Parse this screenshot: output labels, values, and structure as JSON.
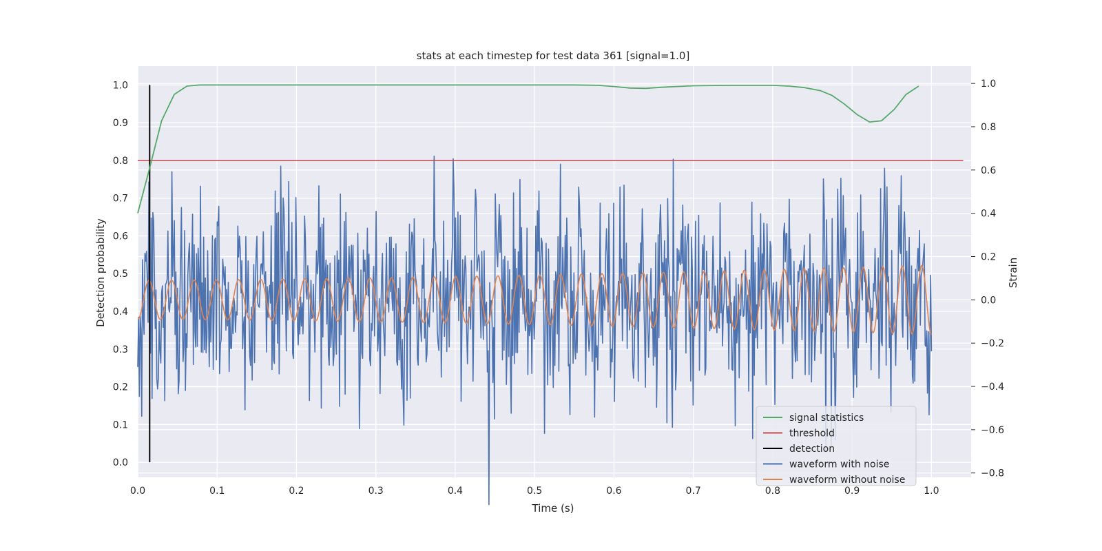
{
  "chart_data": {
    "type": "line",
    "title": "stats at each timestep for test data 361 [signal=1.0]",
    "xlabel": "Time (s)",
    "ylabel_left": "Detection probability",
    "ylabel_right": "Strain",
    "xlim": [
      0.0,
      1.05
    ],
    "ylim_left": [
      -0.04,
      1.05
    ],
    "ylim_right": [
      -0.82,
      1.08
    ],
    "x_ticks": [
      "0.0",
      "0.1",
      "0.2",
      "0.3",
      "0.4",
      "0.5",
      "0.6",
      "0.7",
      "0.8",
      "0.9",
      "1.0"
    ],
    "y_ticks_left": [
      "0.0",
      "0.1",
      "0.2",
      "0.3",
      "0.4",
      "0.5",
      "0.6",
      "0.7",
      "0.8",
      "0.9",
      "1.0"
    ],
    "y_ticks_right": [
      "−0.8",
      "−0.6",
      "−0.4",
      "−0.2",
      "0.0",
      "0.2",
      "0.4",
      "0.6",
      "0.8",
      "1.0"
    ],
    "grid": true,
    "legend_position": "lower-right",
    "colors": {
      "signal_statistics": "#55a868",
      "threshold": "#c44e52",
      "detection": "#000000",
      "waveform_noise": "#4c72b0",
      "waveform_clean": "#dd8452",
      "plot_bg": "#eaeaf2",
      "grid": "#ffffff"
    },
    "series": [
      {
        "name": "signal statistics",
        "axis": "left",
        "x": [
          0.0,
          0.015,
          0.03,
          0.046,
          0.062,
          0.078,
          0.1,
          0.2,
          0.3,
          0.4,
          0.5,
          0.55,
          0.58,
          0.6,
          0.62,
          0.64,
          0.66,
          0.7,
          0.75,
          0.8,
          0.82,
          0.84,
          0.86,
          0.875,
          0.89,
          0.906,
          0.922,
          0.937,
          0.953,
          0.968,
          0.984
        ],
        "values": [
          0.66,
          0.78,
          0.905,
          0.975,
          0.997,
          1.0,
          1.0,
          1.0,
          1.0,
          1.0,
          1.0,
          1.0,
          0.999,
          0.996,
          0.992,
          0.991,
          0.994,
          0.998,
          0.999,
          0.999,
          0.997,
          0.993,
          0.985,
          0.972,
          0.95,
          0.922,
          0.902,
          0.905,
          0.935,
          0.975,
          0.997
        ]
      },
      {
        "name": "threshold",
        "axis": "left",
        "x": [
          0.0,
          1.04
        ],
        "values": [
          0.8,
          0.8
        ]
      },
      {
        "name": "detection",
        "axis": "left",
        "x": [
          0.015,
          0.015
        ],
        "values": [
          0.0,
          1.0
        ]
      },
      {
        "name": "waveform with noise",
        "axis": "right",
        "x_start": 0.0,
        "x_end": 1.0,
        "noise_std": 0.22,
        "values": []
      },
      {
        "name": "waveform without noise",
        "axis": "right",
        "x_start": 0.0,
        "x_end": 1.0,
        "values": []
      }
    ],
    "legend": [
      "signal statistics",
      "threshold",
      "detection",
      "waveform with noise",
      "waveform without noise"
    ]
  }
}
